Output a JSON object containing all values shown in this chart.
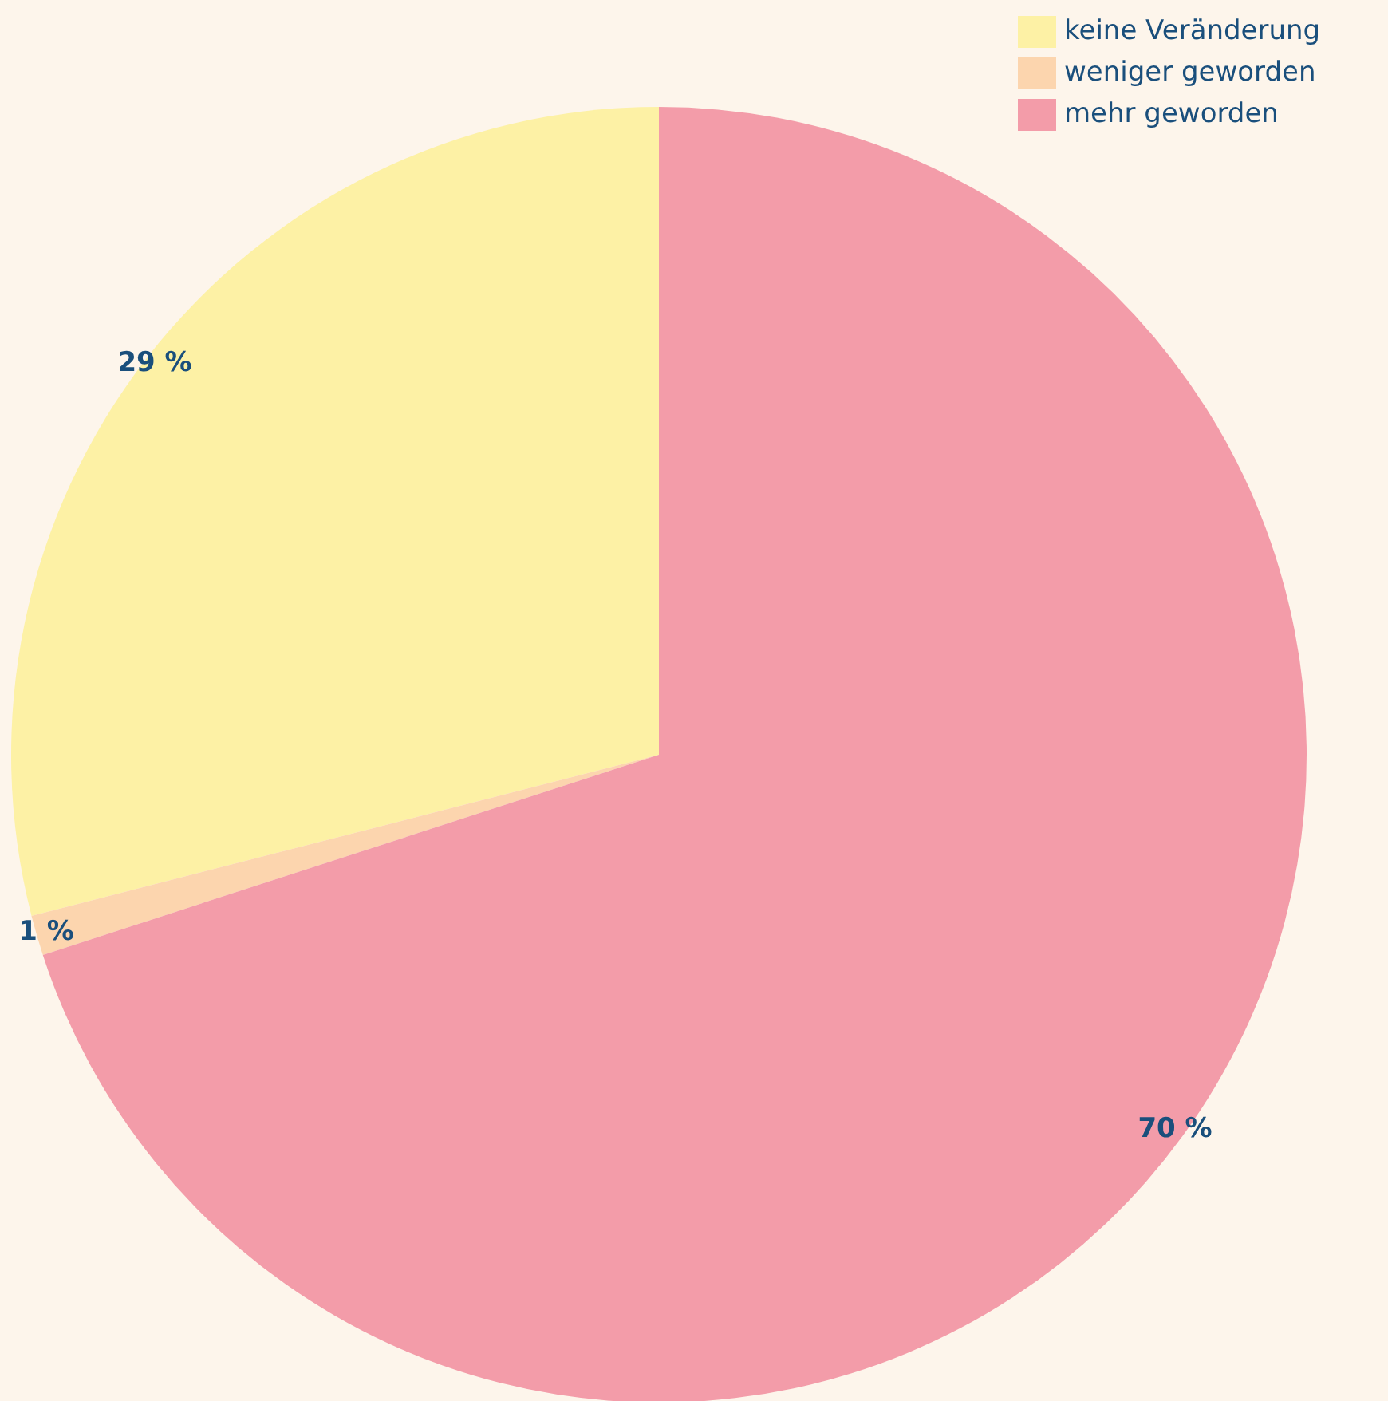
{
  "chart_data": {
    "type": "pie",
    "categories": [
      "keine Veränderung",
      "weniger geworden",
      "mehr geworden"
    ],
    "values": [
      29,
      1,
      70
    ],
    "colors": [
      "#fdf1a5",
      "#fcd5ae",
      "#f39ca9"
    ],
    "data_labels": true,
    "value_labels": [
      "29 %",
      "1 %",
      "70 %"
    ],
    "legend": "top right"
  }
}
